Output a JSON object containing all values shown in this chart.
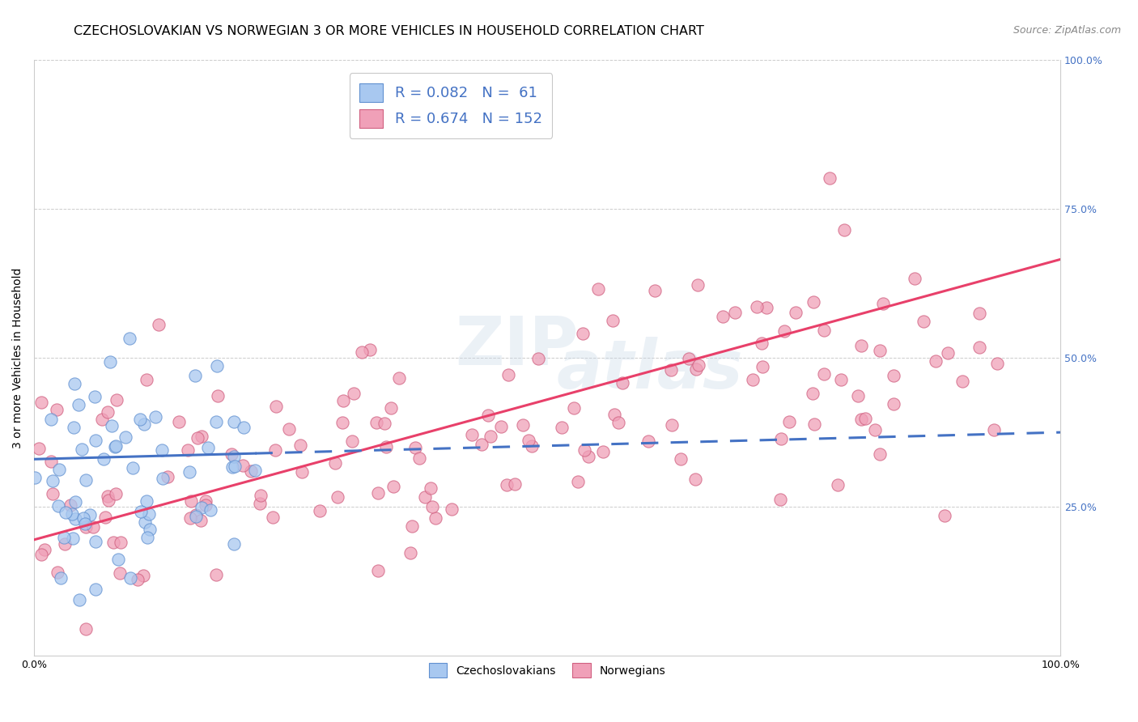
{
  "title": "CZECHOSLOVAKIAN VS NORWEGIAN 3 OR MORE VEHICLES IN HOUSEHOLD CORRELATION CHART",
  "source": "Source: ZipAtlas.com",
  "ylabel": "3 or more Vehicles in Household",
  "xlim": [
    0,
    1
  ],
  "ylim": [
    0,
    1
  ],
  "ytick_positions": [
    0.0,
    0.25,
    0.5,
    0.75,
    1.0
  ],
  "right_ytick_positions": [
    0.25,
    0.5,
    0.75,
    1.0
  ],
  "right_ytick_labels": [
    "25.0%",
    "50.0%",
    "75.0%",
    "100.0%"
  ],
  "czech_R": 0.082,
  "czech_N": 61,
  "norw_R": 0.674,
  "norw_N": 152,
  "czech_color": "#a8c8f0",
  "norw_color": "#f0a0b8",
  "czech_line_color": "#4472c4",
  "norw_line_color": "#e8406a",
  "czech_dot_edge": "#6090d0",
  "norw_dot_edge": "#d06080",
  "legend_text_color": "#4472c4",
  "background_color": "#ffffff",
  "title_fontsize": 11.5,
  "axis_label_fontsize": 10,
  "tick_fontsize": 9,
  "legend_fontsize": 13
}
